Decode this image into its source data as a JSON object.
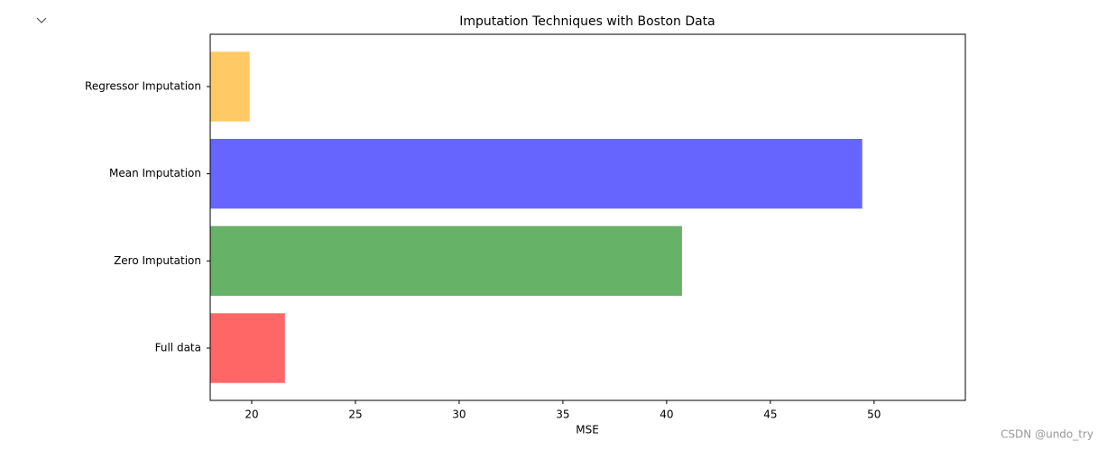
{
  "chart_data": {
    "type": "barh",
    "title": "Imputation Techniques with Boston Data",
    "x_label": "MSE",
    "categories": [
      "Full data",
      "Zero Imputation",
      "Mean Imputation",
      "Regressor Imputation"
    ],
    "values": [
      21.6,
      40.74,
      49.43,
      19.9
    ],
    "colors": [
      "#ff6666",
      "#66b266",
      "#6666ff",
      "#ffc966"
    ],
    "xlim": [
      18,
      54.4
    ],
    "xticks": [
      20,
      25,
      30,
      35,
      40,
      45,
      50
    ]
  },
  "watermark": "CSDN @undo_try"
}
